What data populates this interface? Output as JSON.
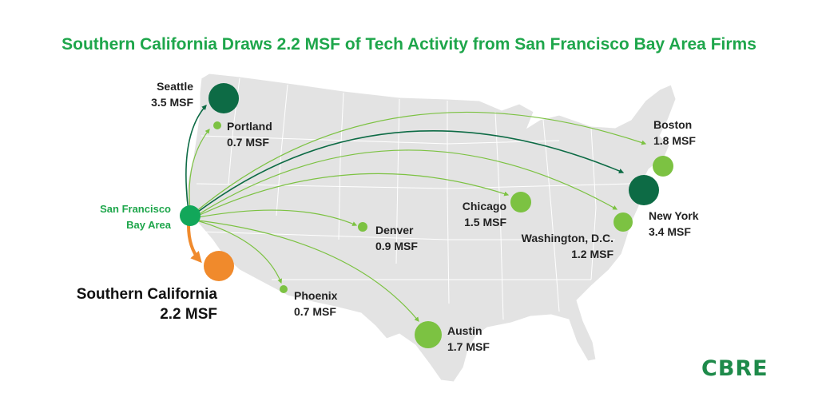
{
  "title": "Southern California Draws 2.2 MSF of Tech Activity from San Francisco Bay Area Firms",
  "origin": {
    "line1": "San Francisco",
    "line2": "Bay Area",
    "color": "#12a75a"
  },
  "highlight": {
    "name": "Southern California",
    "value": "2.2 MSF",
    "color": "#f08a2c"
  },
  "destinations": [
    {
      "name": "Seattle",
      "value": "3.5 MSF",
      "color": "#0d6b45"
    },
    {
      "name": "Portland",
      "value": "0.7 MSF",
      "color": "#7cc242"
    },
    {
      "name": "Boston",
      "value": "1.8 MSF",
      "color": "#7cc242"
    },
    {
      "name": "New York",
      "value": "3.4 MSF",
      "color": "#0d6b45"
    },
    {
      "name": "Chicago",
      "value": "1.5 MSF",
      "color": "#7cc242"
    },
    {
      "name": "Washington, D.C.",
      "value": "1.2 MSF",
      "color": "#7cc242"
    },
    {
      "name": "Denver",
      "value": "0.9 MSF",
      "color": "#7cc242"
    },
    {
      "name": "Phoenix",
      "value": "0.7 MSF",
      "color": "#7cc242"
    },
    {
      "name": "Austin",
      "value": "1.7 MSF",
      "color": "#7cc242"
    }
  ],
  "logo": "CBRE",
  "map_fill": "#e3e3e3",
  "title_color": "#1ea64b"
}
